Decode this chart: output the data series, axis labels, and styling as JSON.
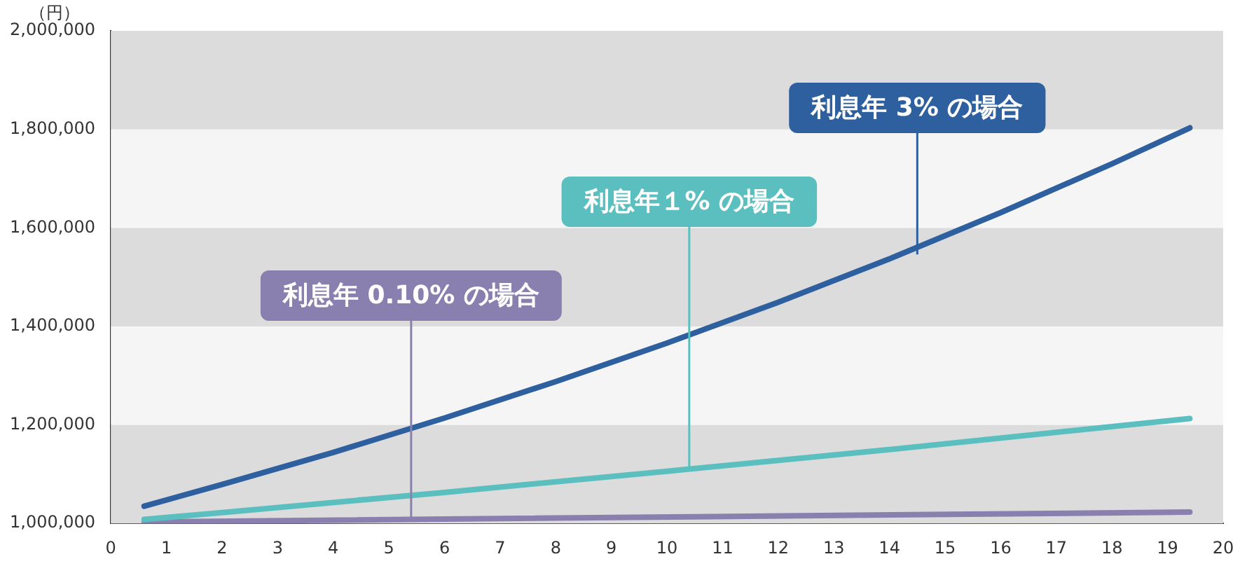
{
  "chart_data": {
    "type": "line",
    "ylabel": "（円）",
    "xlim": [
      0,
      20
    ],
    "xticks": [
      0,
      1,
      2,
      3,
      4,
      5,
      6,
      7,
      8,
      9,
      10,
      11,
      12,
      13,
      14,
      15,
      16,
      17,
      18,
      19,
      20
    ],
    "ylim": [
      1000000,
      2000000
    ],
    "yticks": [
      {
        "value": 1000000,
        "label": "1,000,000"
      },
      {
        "value": 1200000,
        "label": "1,200,000"
      },
      {
        "value": 1400000,
        "label": "1,400,000"
      },
      {
        "value": 1600000,
        "label": "1,600,000"
      },
      {
        "value": 1800000,
        "label": "1,800,000"
      },
      {
        "value": 2000000,
        "label": "2,000,000"
      }
    ],
    "bands": [
      {
        "axis": "y",
        "from": 1000000,
        "to": 1200000,
        "color": "#dcdcdc"
      },
      {
        "axis": "y",
        "from": 1200000,
        "to": 1400000,
        "color": "#f5f5f5"
      },
      {
        "axis": "y",
        "from": 1400000,
        "to": 1600000,
        "color": "#dcdcdc"
      },
      {
        "axis": "y",
        "from": 1600000,
        "to": 1800000,
        "color": "#f5f5f5"
      },
      {
        "axis": "y",
        "from": 1800000,
        "to": 2000000,
        "color": "#dcdcdc"
      }
    ],
    "legend": false,
    "marker": "none",
    "line_style": "solid",
    "series": [
      {
        "color": "#2e5f9e",
        "x": [
          0.6,
          2,
          4,
          6,
          8,
          10,
          12,
          14,
          16,
          18,
          19.4
        ],
        "values": [
          1035000,
          1079000,
          1144000,
          1214000,
          1288000,
          1366000,
          1449000,
          1537000,
          1631000,
          1730000,
          1803000
        ]
      },
      {
        "color": "#5bbfbf",
        "x": [
          0.6,
          2,
          6,
          10,
          14,
          19.4
        ],
        "values": [
          1008000,
          1022000,
          1063000,
          1106000,
          1150000,
          1213000
        ]
      },
      {
        "color": "#8a80b0",
        "x": [
          0.6,
          19.4
        ],
        "values": [
          1003000,
          1023000
        ]
      }
    ],
    "annotations": [
      {
        "text": "利息年 3% の場合",
        "x": 14.5,
        "y": 1546000
      },
      {
        "text": "利息年１% の場合",
        "x": 10.4,
        "y": 1110000
      },
      {
        "text": "利息年 0.10% の場合",
        "x": 5.4,
        "y": 1011000
      }
    ]
  }
}
